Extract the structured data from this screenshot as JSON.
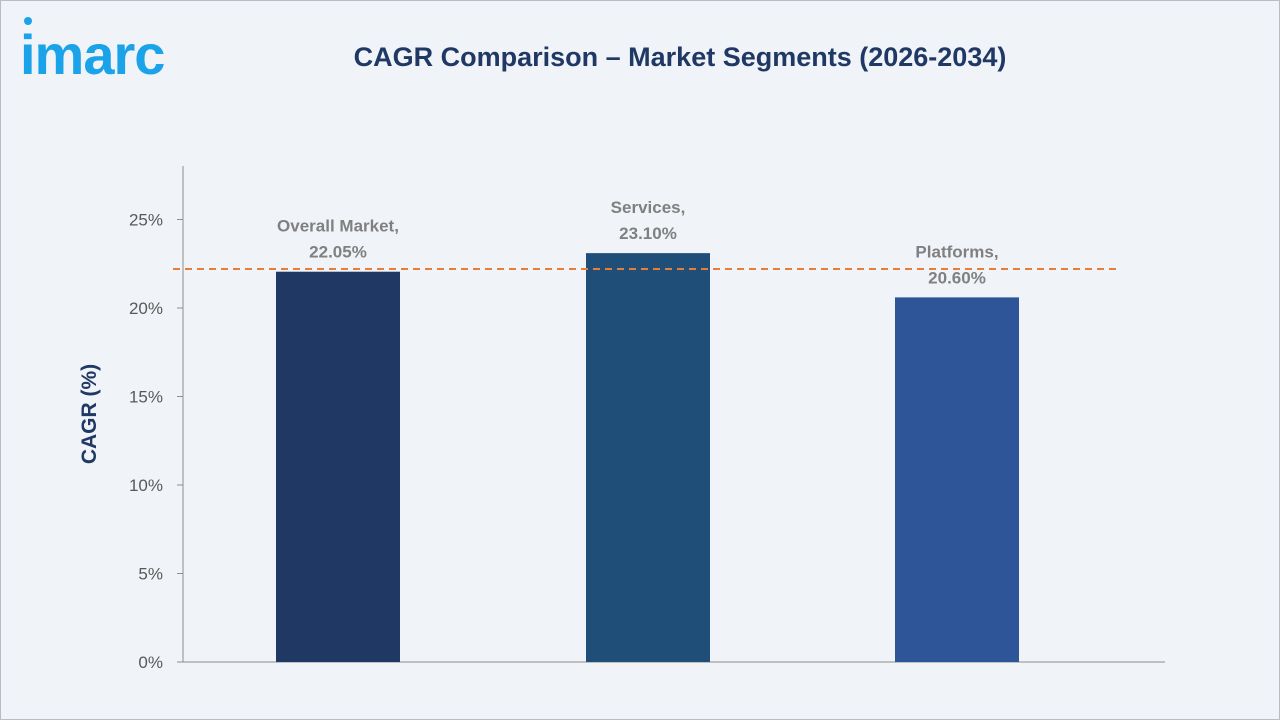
{
  "brand": {
    "logo_text": "imarc"
  },
  "header": {
    "title": "CAGR Comparison – Market Segments (2026-2034)"
  },
  "chart_data": {
    "type": "bar",
    "title": "CAGR Comparison – Market Segments (2026-2034)",
    "xlabel": "",
    "ylabel": "CAGR (%)",
    "categories": [
      "Overall Market",
      "Services",
      "Platforms"
    ],
    "values": [
      22.05,
      23.1,
      20.6
    ],
    "data_labels": [
      [
        "Overall Market,",
        "22.05%"
      ],
      [
        "Services,",
        "23.10%"
      ],
      [
        "Platforms,",
        "20.60%"
      ]
    ],
    "ylim": [
      0,
      28
    ],
    "yticks": [
      0,
      5,
      10,
      15,
      20,
      25
    ],
    "ytick_labels": [
      "0%",
      "5%",
      "10%",
      "15%",
      "20%",
      "25%"
    ],
    "reference_line": {
      "value": 22.2,
      "style": "dashed",
      "color": "#e67e39"
    },
    "bar_colors": [
      "#203864",
      "#1f4e79",
      "#2e5597"
    ],
    "grid": false,
    "legend": "none"
  }
}
